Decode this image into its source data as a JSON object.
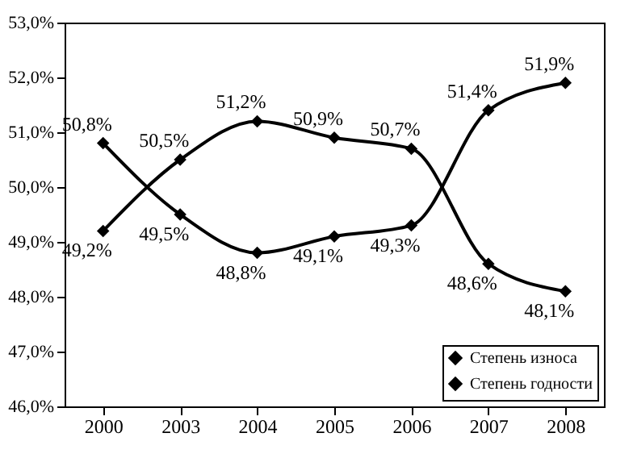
{
  "chart_data": {
    "type": "line",
    "categories": [
      "2000",
      "2003",
      "2004",
      "2005",
      "2006",
      "2007",
      "2008"
    ],
    "series": [
      {
        "name": "Степень износа",
        "color": "#000000",
        "values": [
          49.2,
          50.5,
          51.2,
          50.9,
          50.7,
          48.6,
          48.1
        ],
        "value_labels": [
          "49,2%",
          "50,5%",
          "51,2%",
          "50,9%",
          "50,7%",
          "48,6%",
          "48,1%"
        ]
      },
      {
        "name": "Степень годности",
        "color": "#000000",
        "values": [
          50.8,
          49.5,
          48.8,
          49.1,
          49.3,
          51.4,
          51.9
        ],
        "value_labels": [
          "50,8%",
          "49,5%",
          "48,8%",
          "49,1%",
          "49,3%",
          "51,4%",
          "51,9%"
        ]
      }
    ],
    "ylim": [
      46,
      53
    ],
    "yticks": [
      {
        "value": 46,
        "label": "46,0%"
      },
      {
        "value": 47,
        "label": "47,0%"
      },
      {
        "value": 48,
        "label": "48,0%"
      },
      {
        "value": 49,
        "label": "49,0%"
      },
      {
        "value": 50,
        "label": "50,0%"
      },
      {
        "value": 51,
        "label": "51,0%"
      },
      {
        "value": 52,
        "label": "52,0%"
      },
      {
        "value": 53,
        "label": "53,0%"
      }
    ],
    "grid": false,
    "legend": "bottom right",
    "marker": "diamond",
    "line_style": "solid"
  }
}
